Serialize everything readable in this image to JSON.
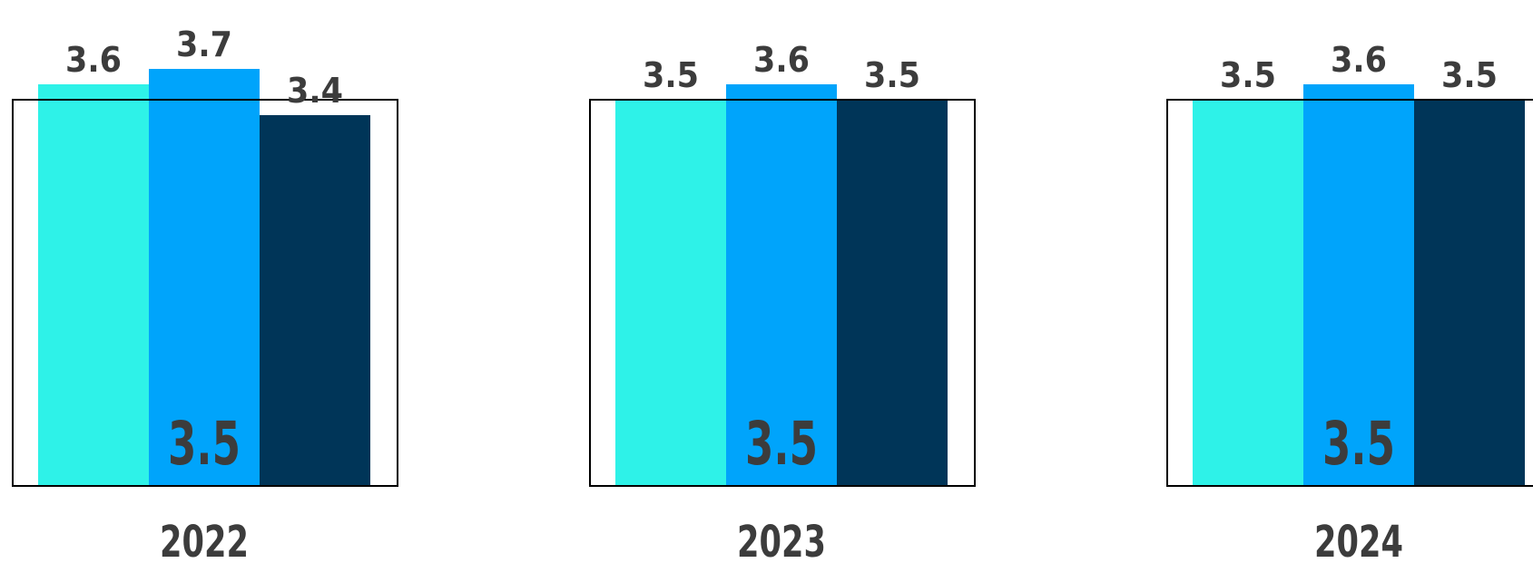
{
  "chart_data": {
    "type": "bar",
    "colors": [
      "#2ef2e8",
      "#00a4fb",
      "#003558"
    ],
    "box_color": "#000000",
    "text_color": "#3c3c3c",
    "groups": [
      {
        "year": "2022",
        "average": "3.5",
        "values": [
          3.6,
          3.7,
          3.4
        ],
        "labels": [
          "3.6",
          "3.7",
          "3.4"
        ]
      },
      {
        "year": "2023",
        "average": "3.5",
        "values": [
          3.5,
          3.6,
          3.5
        ],
        "labels": [
          "3.5",
          "3.6",
          "3.5"
        ]
      },
      {
        "year": "2024",
        "average": "3.5",
        "values": [
          3.5,
          3.6,
          3.5
        ],
        "labels": [
          "3.5",
          "3.6",
          "3.5"
        ]
      }
    ],
    "box_value": 3.5
  }
}
